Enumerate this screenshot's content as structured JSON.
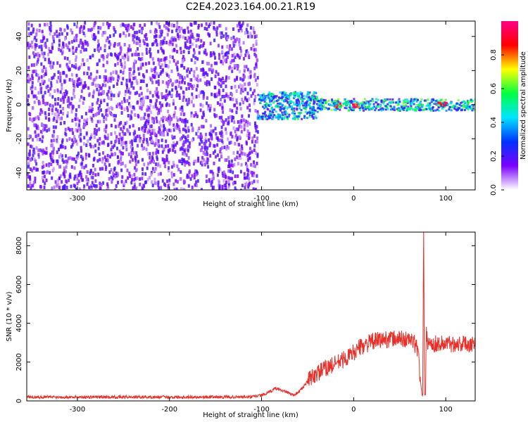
{
  "title": "C2E4.2023.164.00.21.R19",
  "chart_data": [
    {
      "type": "heatmap",
      "xlabel": "Height of straight line (km)",
      "ylabel": "Frequency (Hz)",
      "xlim": [
        -355,
        132
      ],
      "ylim": [
        -50,
        49
      ],
      "xticks": [
        -300,
        -200,
        -100,
        0,
        100
      ],
      "yticks": [
        -40,
        -20,
        0,
        20,
        40
      ],
      "colorbar": {
        "label": "Normalized spectral amplitude",
        "range": [
          0,
          1
        ],
        "ticks": [
          0.0,
          0.2,
          0.4,
          0.6,
          0.8
        ],
        "tick_labels": [
          "0.0",
          "0.2",
          "0.4",
          "0.6",
          "0.8"
        ],
        "colors": [
          "#ffffff",
          "#7b00ff",
          "#0033ff",
          "#00e5ff",
          "#00ff40",
          "#ffff00",
          "#ff0000",
          "#ff0088"
        ]
      },
      "regions": [
        {
          "x": [
            -355,
            -105
          ],
          "freq": [
            -50,
            49
          ],
          "level": 0.15,
          "description_label": "noise"
        },
        {
          "x": [
            -105,
            -40
          ],
          "freq": [
            -8,
            8
          ],
          "level": 0.4
        },
        {
          "x": [
            -40,
            132
          ],
          "freq": [
            -3,
            4
          ],
          "level": 0.45
        },
        {
          "x": [
            -22,
            -15
          ],
          "freq": [
            -1,
            2
          ],
          "level": 0.9
        },
        {
          "x": [
            -2,
            5
          ],
          "freq": [
            -1,
            1
          ],
          "level": 0.9
        },
        {
          "x": [
            88,
            100
          ],
          "freq": [
            0,
            2
          ],
          "level": 0.9
        }
      ]
    },
    {
      "type": "line",
      "xlabel": "Height of straight line (km)",
      "ylabel": "SNR (10 * v/v)",
      "xlim": [
        -355,
        132
      ],
      "ylim": [
        0,
        8700
      ],
      "xticks": [
        -300,
        -200,
        -100,
        0,
        100
      ],
      "yticks": [
        0,
        2000,
        4000,
        6000,
        8000
      ],
      "color": "#e8302a",
      "series": [
        {
          "x": [
            -355,
            -300,
            -250,
            -200,
            -150,
            -110,
            -95,
            -85,
            -75,
            -65,
            -60,
            -55,
            -50,
            -45,
            -40,
            -35,
            -30,
            -25,
            -20,
            -15,
            -10,
            -5,
            0,
            5,
            10,
            20,
            30,
            40,
            50,
            60,
            65,
            70,
            72,
            74,
            75,
            76,
            77,
            78,
            79,
            80,
            82,
            85,
            90,
            100,
            110,
            120,
            132
          ],
          "y": [
            200,
            200,
            200,
            200,
            200,
            200,
            350,
            650,
            500,
            300,
            450,
            700,
            1000,
            1250,
            1400,
            1550,
            1700,
            1800,
            1900,
            2050,
            2150,
            2300,
            2500,
            2700,
            2850,
            3050,
            3150,
            3200,
            3200,
            3150,
            3050,
            2600,
            1300,
            400,
            300,
            8600,
            400,
            300,
            3400,
            3100,
            3000,
            2950,
            2950,
            2950,
            2950,
            2950,
            2950
          ]
        }
      ]
    }
  ]
}
